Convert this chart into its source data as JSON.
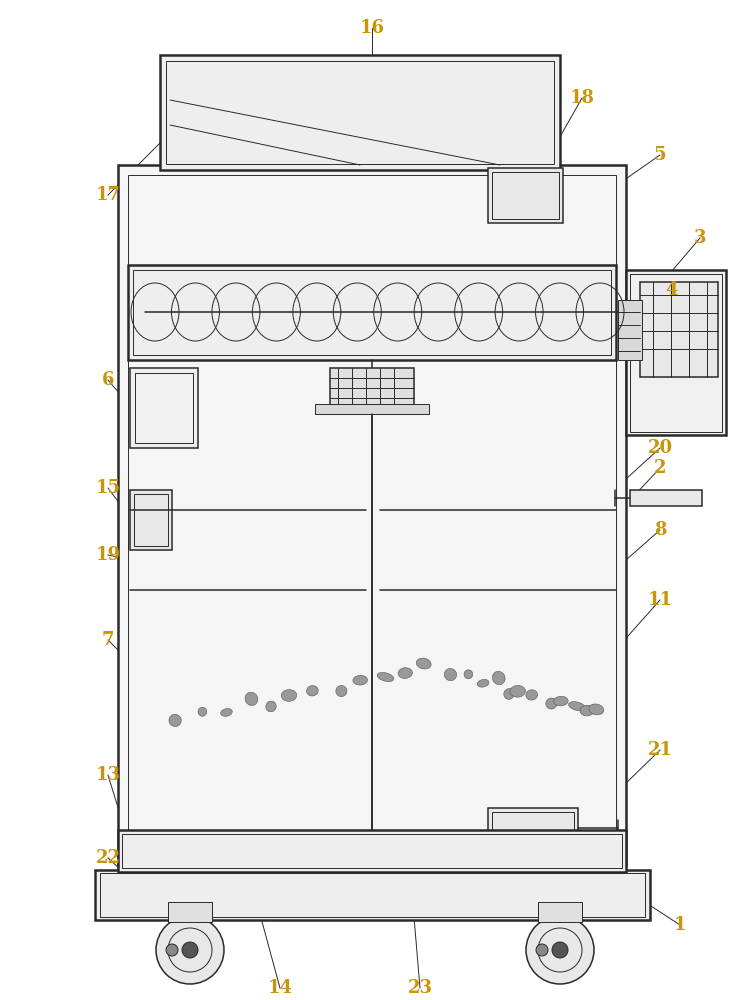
{
  "bg_color": "#ffffff",
  "line_color": "#2a2a2a",
  "label_color": "#c8960a",
  "fig_width": 7.54,
  "fig_height": 10.0,
  "lw_main": 1.8,
  "lw_med": 1.1,
  "lw_thin": 0.7
}
